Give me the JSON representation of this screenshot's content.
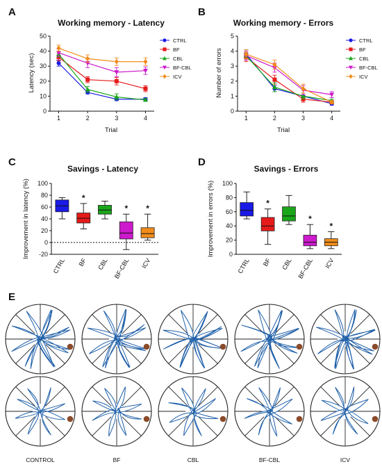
{
  "panels": {
    "A": {
      "letter": "A",
      "title": "Working memory - Latency",
      "xlabel": "Trial",
      "ylabel": "Latency (sec)"
    },
    "B": {
      "letter": "B",
      "title": "Working memory - Errors",
      "xlabel": "Trial",
      "ylabel": "Number of errors"
    },
    "C": {
      "letter": "C",
      "title": "Savings - Latency",
      "ylabel": "Improvement in latency (%)"
    },
    "D": {
      "letter": "D",
      "title": "Savings - Errors",
      "ylabel": "Improvement in errors (%)"
    },
    "E": {
      "letter": "E"
    }
  },
  "groups": [
    {
      "name": "CTRL",
      "color": "#1a1ae6",
      "marker": "circle"
    },
    {
      "name": "BF",
      "color": "#e61a1a",
      "marker": "square"
    },
    {
      "name": "CBL",
      "color": "#1aa61a",
      "marker": "triangle-up"
    },
    {
      "name": "BF-CBL",
      "color": "#cc1acc",
      "marker": "triangle-down"
    },
    {
      "name": "ICV",
      "color": "#f08c1a",
      "marker": "diamond"
    }
  ],
  "chart_data": [
    {
      "id": "A",
      "type": "line",
      "x": [
        1,
        2,
        3,
        4
      ],
      "xlim": [
        0.7,
        4.3
      ],
      "ylim": [
        0,
        50
      ],
      "yticks": [
        0,
        10,
        20,
        30,
        40,
        50
      ],
      "legend": "right",
      "series": [
        {
          "name": "CTRL",
          "values": [
            32,
            12.5,
            8,
            8
          ],
          "err": [
            2,
            1,
            1,
            1
          ]
        },
        {
          "name": "BF",
          "values": [
            36,
            21,
            20,
            15
          ],
          "err": [
            2.5,
            2,
            2.5,
            2
          ]
        },
        {
          "name": "CBL",
          "values": [
            38,
            14.5,
            9.5,
            7.5
          ],
          "err": [
            2,
            2,
            2,
            1
          ]
        },
        {
          "name": "BF-CBL",
          "values": [
            39,
            32,
            26,
            27
          ],
          "err": [
            2.5,
            3,
            3,
            2.5
          ]
        },
        {
          "name": "ICV",
          "values": [
            42,
            35,
            33,
            33
          ],
          "err": [
            2,
            2.5,
            2.5,
            2.5
          ]
        }
      ]
    },
    {
      "id": "B",
      "type": "line",
      "x": [
        1,
        2,
        3,
        4
      ],
      "xlim": [
        0.7,
        4.3
      ],
      "ylim": [
        0,
        5
      ],
      "yticks": [
        0,
        1,
        2,
        3,
        4,
        5
      ],
      "legend": "right",
      "series": [
        {
          "name": "CTRL",
          "values": [
            3.8,
            1.5,
            1.0,
            0.5
          ],
          "err": [
            0.3,
            0.2,
            0.2,
            0.1
          ]
        },
        {
          "name": "BF",
          "values": [
            3.6,
            2.1,
            0.8,
            0.6
          ],
          "err": [
            0.3,
            0.3,
            0.2,
            0.1
          ]
        },
        {
          "name": "CBL",
          "values": [
            3.7,
            1.6,
            1.0,
            0.7
          ],
          "err": [
            0.3,
            0.3,
            0.2,
            0.1
          ]
        },
        {
          "name": "BF-CBL",
          "values": [
            3.7,
            2.9,
            1.4,
            1.1
          ],
          "err": [
            0.3,
            0.3,
            0.3,
            0.2
          ]
        },
        {
          "name": "ICV",
          "values": [
            3.8,
            3.1,
            1.5,
            0.6
          ],
          "err": [
            0.3,
            0.3,
            0.3,
            0.1
          ]
        }
      ]
    },
    {
      "id": "C",
      "type": "box",
      "categories": [
        "CTRL",
        "BF",
        "CBL",
        "BF-CBL",
        "ICV"
      ],
      "ylim": [
        -20,
        100
      ],
      "yticks": [
        -20,
        0,
        20,
        40,
        60,
        80,
        100
      ],
      "refline": 0,
      "boxes": [
        {
          "min": 40,
          "q1": 52,
          "median": 62,
          "q3": 72,
          "max": 76,
          "star": ""
        },
        {
          "min": 23,
          "q1": 33,
          "median": 41,
          "q3": 50,
          "max": 66,
          "star": "*"
        },
        {
          "min": 40,
          "q1": 48,
          "median": 55,
          "q3": 63,
          "max": 70,
          "star": ""
        },
        {
          "min": -12,
          "q1": 6,
          "median": 16,
          "q3": 35,
          "max": 48,
          "star": "*"
        },
        {
          "min": 4,
          "q1": 8,
          "median": 15,
          "q3": 25,
          "max": 48,
          "star": "*"
        }
      ]
    },
    {
      "id": "D",
      "type": "box",
      "categories": [
        "CTRL",
        "BF",
        "CBL",
        "BF-CBL",
        "ICV"
      ],
      "ylim": [
        0,
        100
      ],
      "yticks": [
        0,
        20,
        40,
        60,
        80,
        100
      ],
      "boxes": [
        {
          "min": 50,
          "q1": 54,
          "median": 62,
          "q3": 73,
          "max": 88,
          "star": ""
        },
        {
          "min": 14,
          "q1": 33,
          "median": 40,
          "q3": 52,
          "max": 64,
          "star": "*"
        },
        {
          "min": 42,
          "q1": 47,
          "median": 54,
          "q3": 67,
          "max": 83,
          "star": ""
        },
        {
          "min": 8,
          "q1": 12,
          "median": 17,
          "q3": 27,
          "max": 42,
          "star": "*"
        },
        {
          "min": 8,
          "q1": 12,
          "median": 17,
          "q3": 22,
          "max": 32,
          "star": "*"
        }
      ]
    }
  ],
  "mazes": {
    "labels": [
      "CONTROL",
      "BF",
      "CBL",
      "BF-CBL",
      "ICV"
    ],
    "track_color": "#1f5fa8",
    "food_color": "#8b4a2a",
    "rows": 2
  }
}
